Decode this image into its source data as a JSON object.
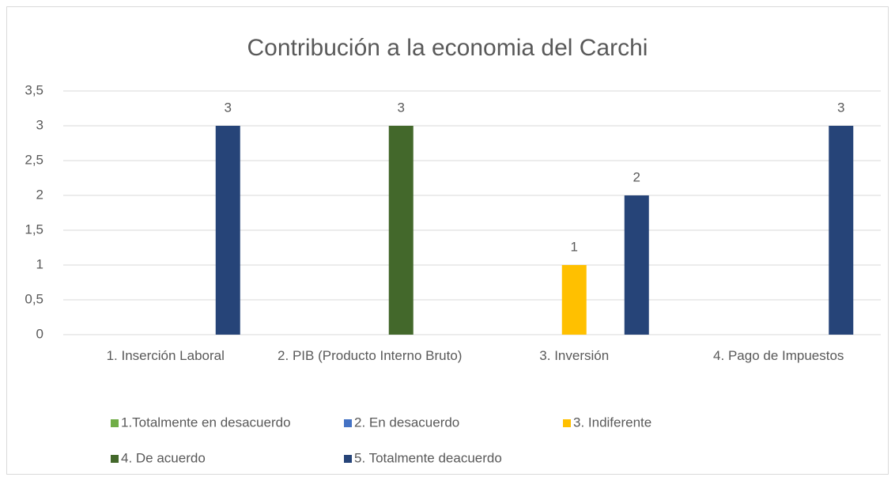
{
  "chart_data": {
    "type": "bar",
    "title": "Contribución a la economia del Carchi",
    "categories": [
      "1. Inserción Laboral",
      "2. PIB (Producto Interno Bruto)",
      "3. Inversión",
      "4. Pago de Impuestos"
    ],
    "series": [
      {
        "name": "1.Totalmente en desacuerdo",
        "color": "#70ad47",
        "values": [
          null,
          null,
          null,
          null
        ]
      },
      {
        "name": "2. En desacuerdo",
        "color": "#4472c4",
        "values": [
          null,
          null,
          null,
          null
        ]
      },
      {
        "name": "3. Indiferente",
        "color": "#ffc000",
        "values": [
          null,
          null,
          1,
          null
        ]
      },
      {
        "name": "4. De acuerdo",
        "color": "#43682b",
        "values": [
          null,
          3,
          null,
          null
        ]
      },
      {
        "name": "5. Totalmente deacuerdo",
        "color": "#264478",
        "values": [
          3,
          null,
          2,
          3
        ]
      }
    ],
    "ylim": [
      0,
      3.5
    ],
    "yticks": [
      0,
      {
        "value": 0.5,
        "label": "0,5"
      },
      1,
      {
        "value": 1.5,
        "label": "1,5"
      },
      2,
      {
        "value": 2.5,
        "label": "2,5"
      },
      3,
      {
        "value": 3.5,
        "label": "3,5"
      }
    ],
    "grid": true,
    "legend": "bottom"
  }
}
